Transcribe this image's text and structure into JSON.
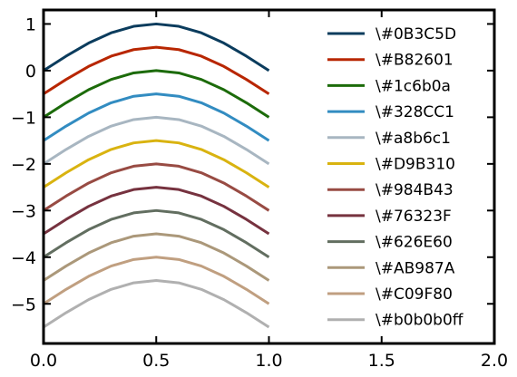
{
  "chart_data": {
    "type": "line",
    "xlim": [
      0.0,
      2.0
    ],
    "ylim": [
      -5.85,
      1.3
    ],
    "x_ticks": [
      "0.0",
      "0.5",
      "1.0",
      "1.5",
      "2.0"
    ],
    "x_tick_values": [
      0.0,
      0.5,
      1.0,
      1.5,
      2.0
    ],
    "y_ticks": [
      "1",
      "0",
      "−1",
      "−2",
      "−3",
      "−4",
      "−5"
    ],
    "y_tick_values": [
      1,
      0,
      -1,
      -2,
      -3,
      -4,
      -5
    ],
    "grid": false,
    "legend_position": "top-right",
    "x": [
      0.0,
      0.1,
      0.2,
      0.3,
      0.4,
      0.5,
      0.6,
      0.7,
      0.8,
      0.9,
      1.0
    ],
    "series": [
      {
        "name": "\\#0B3C5D",
        "color": "#0B3C5D",
        "values": [
          0.0,
          0.31,
          0.59,
          0.81,
          0.95,
          1.0,
          0.95,
          0.81,
          0.59,
          0.31,
          0.0
        ]
      },
      {
        "name": "\\#B82601",
        "color": "#B82601",
        "values": [
          -0.5,
          -0.19,
          0.09,
          0.31,
          0.45,
          0.5,
          0.45,
          0.31,
          0.09,
          -0.19,
          -0.5
        ]
      },
      {
        "name": "\\#1c6b0a",
        "color": "#1c6b0a",
        "values": [
          -1.0,
          -0.69,
          -0.41,
          -0.19,
          -0.05,
          0.0,
          -0.05,
          -0.19,
          -0.41,
          -0.69,
          -1.0
        ]
      },
      {
        "name": "\\#328CC1",
        "color": "#328CC1",
        "values": [
          -1.5,
          -1.19,
          -0.91,
          -0.69,
          -0.55,
          -0.5,
          -0.55,
          -0.69,
          -0.91,
          -1.19,
          -1.5
        ]
      },
      {
        "name": "\\#a8b6c1",
        "color": "#a8b6c1",
        "values": [
          -2.0,
          -1.69,
          -1.41,
          -1.19,
          -1.05,
          -1.0,
          -1.05,
          -1.19,
          -1.41,
          -1.69,
          -2.0
        ]
      },
      {
        "name": "\\#D9B310",
        "color": "#D9B310",
        "values": [
          -2.5,
          -2.19,
          -1.91,
          -1.69,
          -1.55,
          -1.5,
          -1.55,
          -1.69,
          -1.91,
          -2.19,
          -2.5
        ]
      },
      {
        "name": "\\#984B43",
        "color": "#984B43",
        "values": [
          -3.0,
          -2.69,
          -2.41,
          -2.19,
          -2.05,
          -2.0,
          -2.05,
          -2.19,
          -2.41,
          -2.69,
          -3.0
        ]
      },
      {
        "name": "\\#76323F",
        "color": "#76323F",
        "values": [
          -3.5,
          -3.19,
          -2.91,
          -2.69,
          -2.55,
          -2.5,
          -2.55,
          -2.69,
          -2.91,
          -3.19,
          -3.5
        ]
      },
      {
        "name": "\\#626E60",
        "color": "#626E60",
        "values": [
          -4.0,
          -3.69,
          -3.41,
          -3.19,
          -3.05,
          -3.0,
          -3.05,
          -3.19,
          -3.41,
          -3.69,
          -4.0
        ]
      },
      {
        "name": "\\#AB987A",
        "color": "#AB987A",
        "values": [
          -4.5,
          -4.19,
          -3.91,
          -3.69,
          -3.55,
          -3.5,
          -3.55,
          -3.69,
          -3.91,
          -4.19,
          -4.5
        ]
      },
      {
        "name": "\\#C09F80",
        "color": "#C09F80",
        "values": [
          -5.0,
          -4.69,
          -4.41,
          -4.19,
          -4.05,
          -4.0,
          -4.05,
          -4.19,
          -4.41,
          -4.69,
          -5.0
        ]
      },
      {
        "name": "\\#b0b0b0ff",
        "color": "#b0b0b0",
        "values": [
          -5.5,
          -5.19,
          -4.91,
          -4.69,
          -4.55,
          -4.5,
          -4.55,
          -4.69,
          -4.91,
          -5.19,
          -5.5
        ]
      }
    ]
  }
}
